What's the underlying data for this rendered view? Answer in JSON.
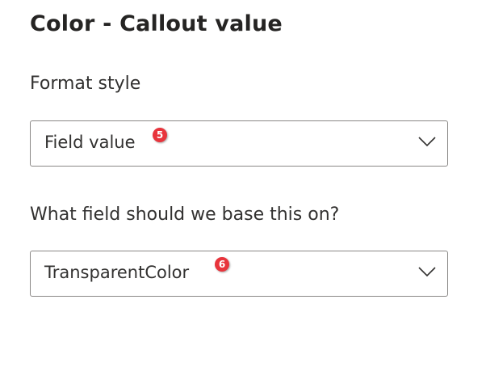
{
  "title": "Color - Callout value",
  "format_style": {
    "label": "Format style",
    "value": "Field value",
    "badge": "5"
  },
  "base_field": {
    "label": "What field should we base this on?",
    "value": "TransparentColor",
    "badge": "6"
  },
  "colors": {
    "badge": "#e8343c",
    "border": "#8a8886"
  }
}
